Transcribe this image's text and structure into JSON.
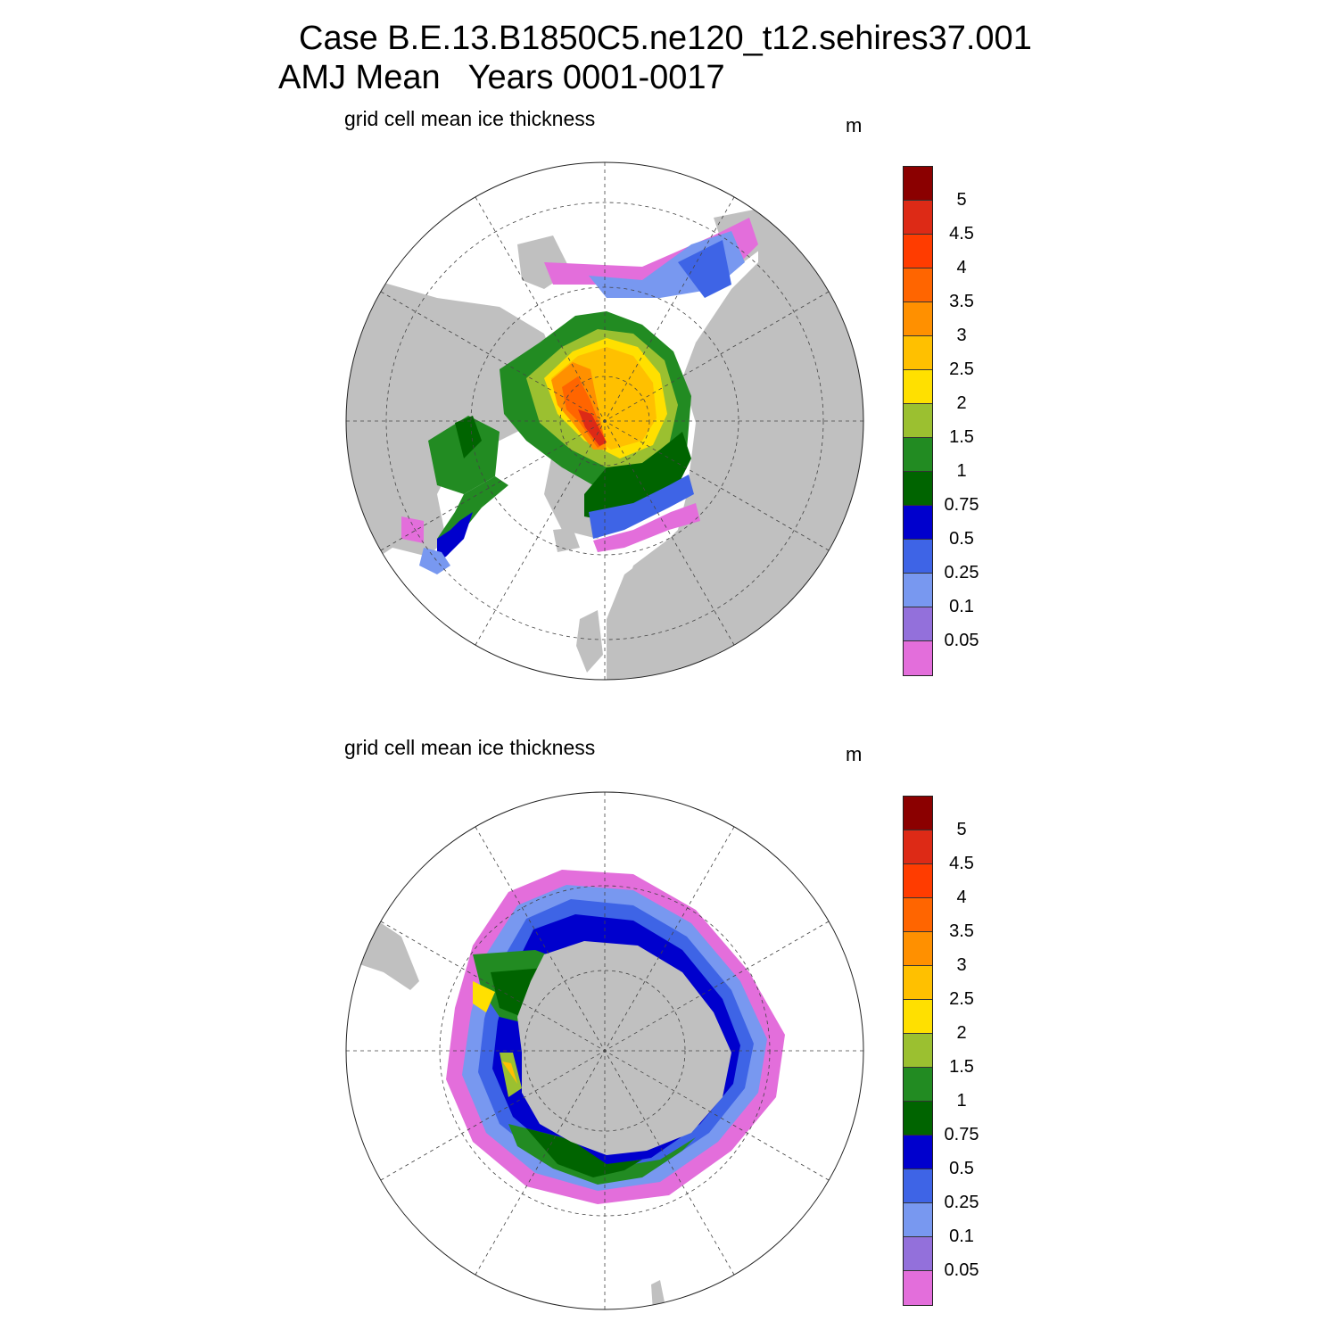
{
  "header": {
    "title_line1": "Case B.E.13.B1850C5.ne120_t12.sehires37.001",
    "title_line2": "AMJ Mean   Years 0001-0017"
  },
  "panels": [
    {
      "id": "north",
      "subtitle": "grid cell mean ice thickness",
      "unit": "m",
      "hemisphere": "Arctic"
    },
    {
      "id": "south",
      "subtitle": "grid cell mean ice thickness",
      "unit": "m",
      "hemisphere": "Antarctic"
    }
  ],
  "colorbar": {
    "labels": [
      "5",
      "4.5",
      "4",
      "3.5",
      "3",
      "2.5",
      "2",
      "1.5",
      "1",
      "0.75",
      "0.5",
      "0.25",
      "0.1",
      "0.05"
    ],
    "colors": [
      "#8b0000",
      "#dd2a16",
      "#ff3c00",
      "#ff6500",
      "#ff9000",
      "#ffc000",
      "#ffe000",
      "#9bc030",
      "#228b22",
      "#006400",
      "#0000cd",
      "#3e64e6",
      "#7898f0",
      "#9370db",
      "#e36edb"
    ]
  },
  "colors": {
    "land": "#c0c0c0",
    "ocean": "#ffffff",
    "grid": "#444444"
  }
}
